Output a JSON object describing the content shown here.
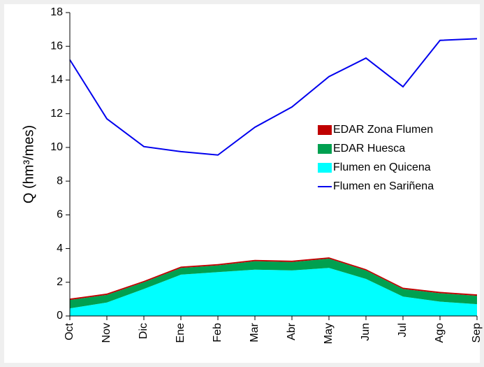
{
  "chart_data": {
    "type": "area",
    "y_label": "Q (hm³/mes)",
    "categories": [
      "Oct",
      "Nov",
      "Dic",
      "Ene",
      "Feb",
      "Mar",
      "Abr",
      "May",
      "Jun",
      "Jul",
      "Ago",
      "Sep"
    ],
    "series": [
      {
        "name": "EDAR Zona Flumen",
        "type": "area",
        "color": "#c00000",
        "values": [
          0.08,
          0.08,
          0.08,
          0.08,
          0.08,
          0.08,
          0.08,
          0.08,
          0.08,
          0.08,
          0.08,
          0.08
        ]
      },
      {
        "name": "EDAR Huesca",
        "type": "area",
        "color": "#00a050",
        "values": [
          0.5,
          0.45,
          0.4,
          0.4,
          0.4,
          0.5,
          0.5,
          0.55,
          0.5,
          0.45,
          0.5,
          0.5
        ]
      },
      {
        "name": "Flumen en Quicena",
        "type": "area",
        "color": "#00ffff",
        "values": [
          0.45,
          0.8,
          1.6,
          2.45,
          2.6,
          2.75,
          2.7,
          2.85,
          2.2,
          1.15,
          0.85,
          0.7
        ]
      },
      {
        "name": "Flumen en Sariñena",
        "type": "line",
        "color": "#0000ee",
        "values": [
          15.2,
          11.7,
          10.05,
          9.75,
          9.55,
          11.2,
          12.4,
          14.2,
          15.3,
          13.6,
          16.35,
          16.45
        ]
      }
    ],
    "ylim": [
      0,
      18
    ],
    "yticks": [
      0,
      2,
      4,
      6,
      8,
      10,
      12,
      14,
      16,
      18
    ],
    "legend": "right"
  }
}
